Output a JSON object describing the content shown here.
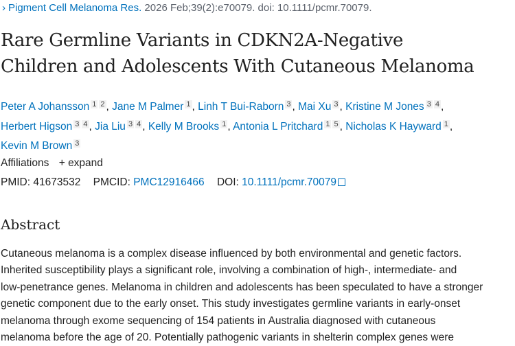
{
  "citation": {
    "journal": "Pigment Cell Melanoma Res.",
    "details": "2026 Feb;39(2):e70079. doi: 10.1111/pcmr.70079."
  },
  "title_lines": [
    "Rare Germline Variants in CDKN2A-Negative",
    "Children and Adolescents With Cutaneous Melanoma"
  ],
  "authors": [
    {
      "name": "Peter A Johansson",
      "aff": [
        "1",
        "2"
      ]
    },
    {
      "name": "Jane M Palmer",
      "aff": [
        "1"
      ]
    },
    {
      "name": "Linh T Bui-Raborn",
      "aff": [
        "3"
      ]
    },
    {
      "name": "Mai Xu",
      "aff": [
        "3"
      ]
    },
    {
      "name": "Kristine M Jones",
      "aff": [
        "3",
        "4"
      ]
    },
    {
      "name": "Herbert Higson",
      "aff": [
        "3",
        "4"
      ]
    },
    {
      "name": "Jia Liu",
      "aff": [
        "3",
        "4"
      ]
    },
    {
      "name": "Kelly M Brooks",
      "aff": [
        "1"
      ]
    },
    {
      "name": "Antonia L Pritchard",
      "aff": [
        "1",
        "5"
      ]
    },
    {
      "name": "Nicholas K Hayward",
      "aff": [
        "1"
      ]
    },
    {
      "name": "Kevin M Brown",
      "aff": [
        "3"
      ]
    }
  ],
  "affiliations": {
    "label": "Affiliations",
    "expand": "expand"
  },
  "ids": {
    "pmid_label": "PMID:",
    "pmid": "41673532",
    "pmcid_label": "PMCID:",
    "pmcid": "PMC12916466",
    "doi_label": "DOI:",
    "doi": "10.1111/pcmr.70079"
  },
  "abstract": {
    "heading": "Abstract",
    "lines": [
      "Cutaneous melanoma is a complex disease influenced by both environmental and genetic factors.",
      "Inherited susceptibility plays a significant role, involving a combination of high-, intermediate- and",
      "low-penetrance genes. Melanoma in children and adolescents has been speculated to have a stronger",
      "genetic component due to the early onset. This study investigates germline variants in early-onset",
      "melanoma through exome sequencing of 154 patients in Australia diagnosed with cutaneous",
      "melanoma before the age of 20. Potentially pathogenic variants in shelterin complex genes were"
    ]
  },
  "colors": {
    "link": "#0071bc",
    "text": "#212121"
  }
}
